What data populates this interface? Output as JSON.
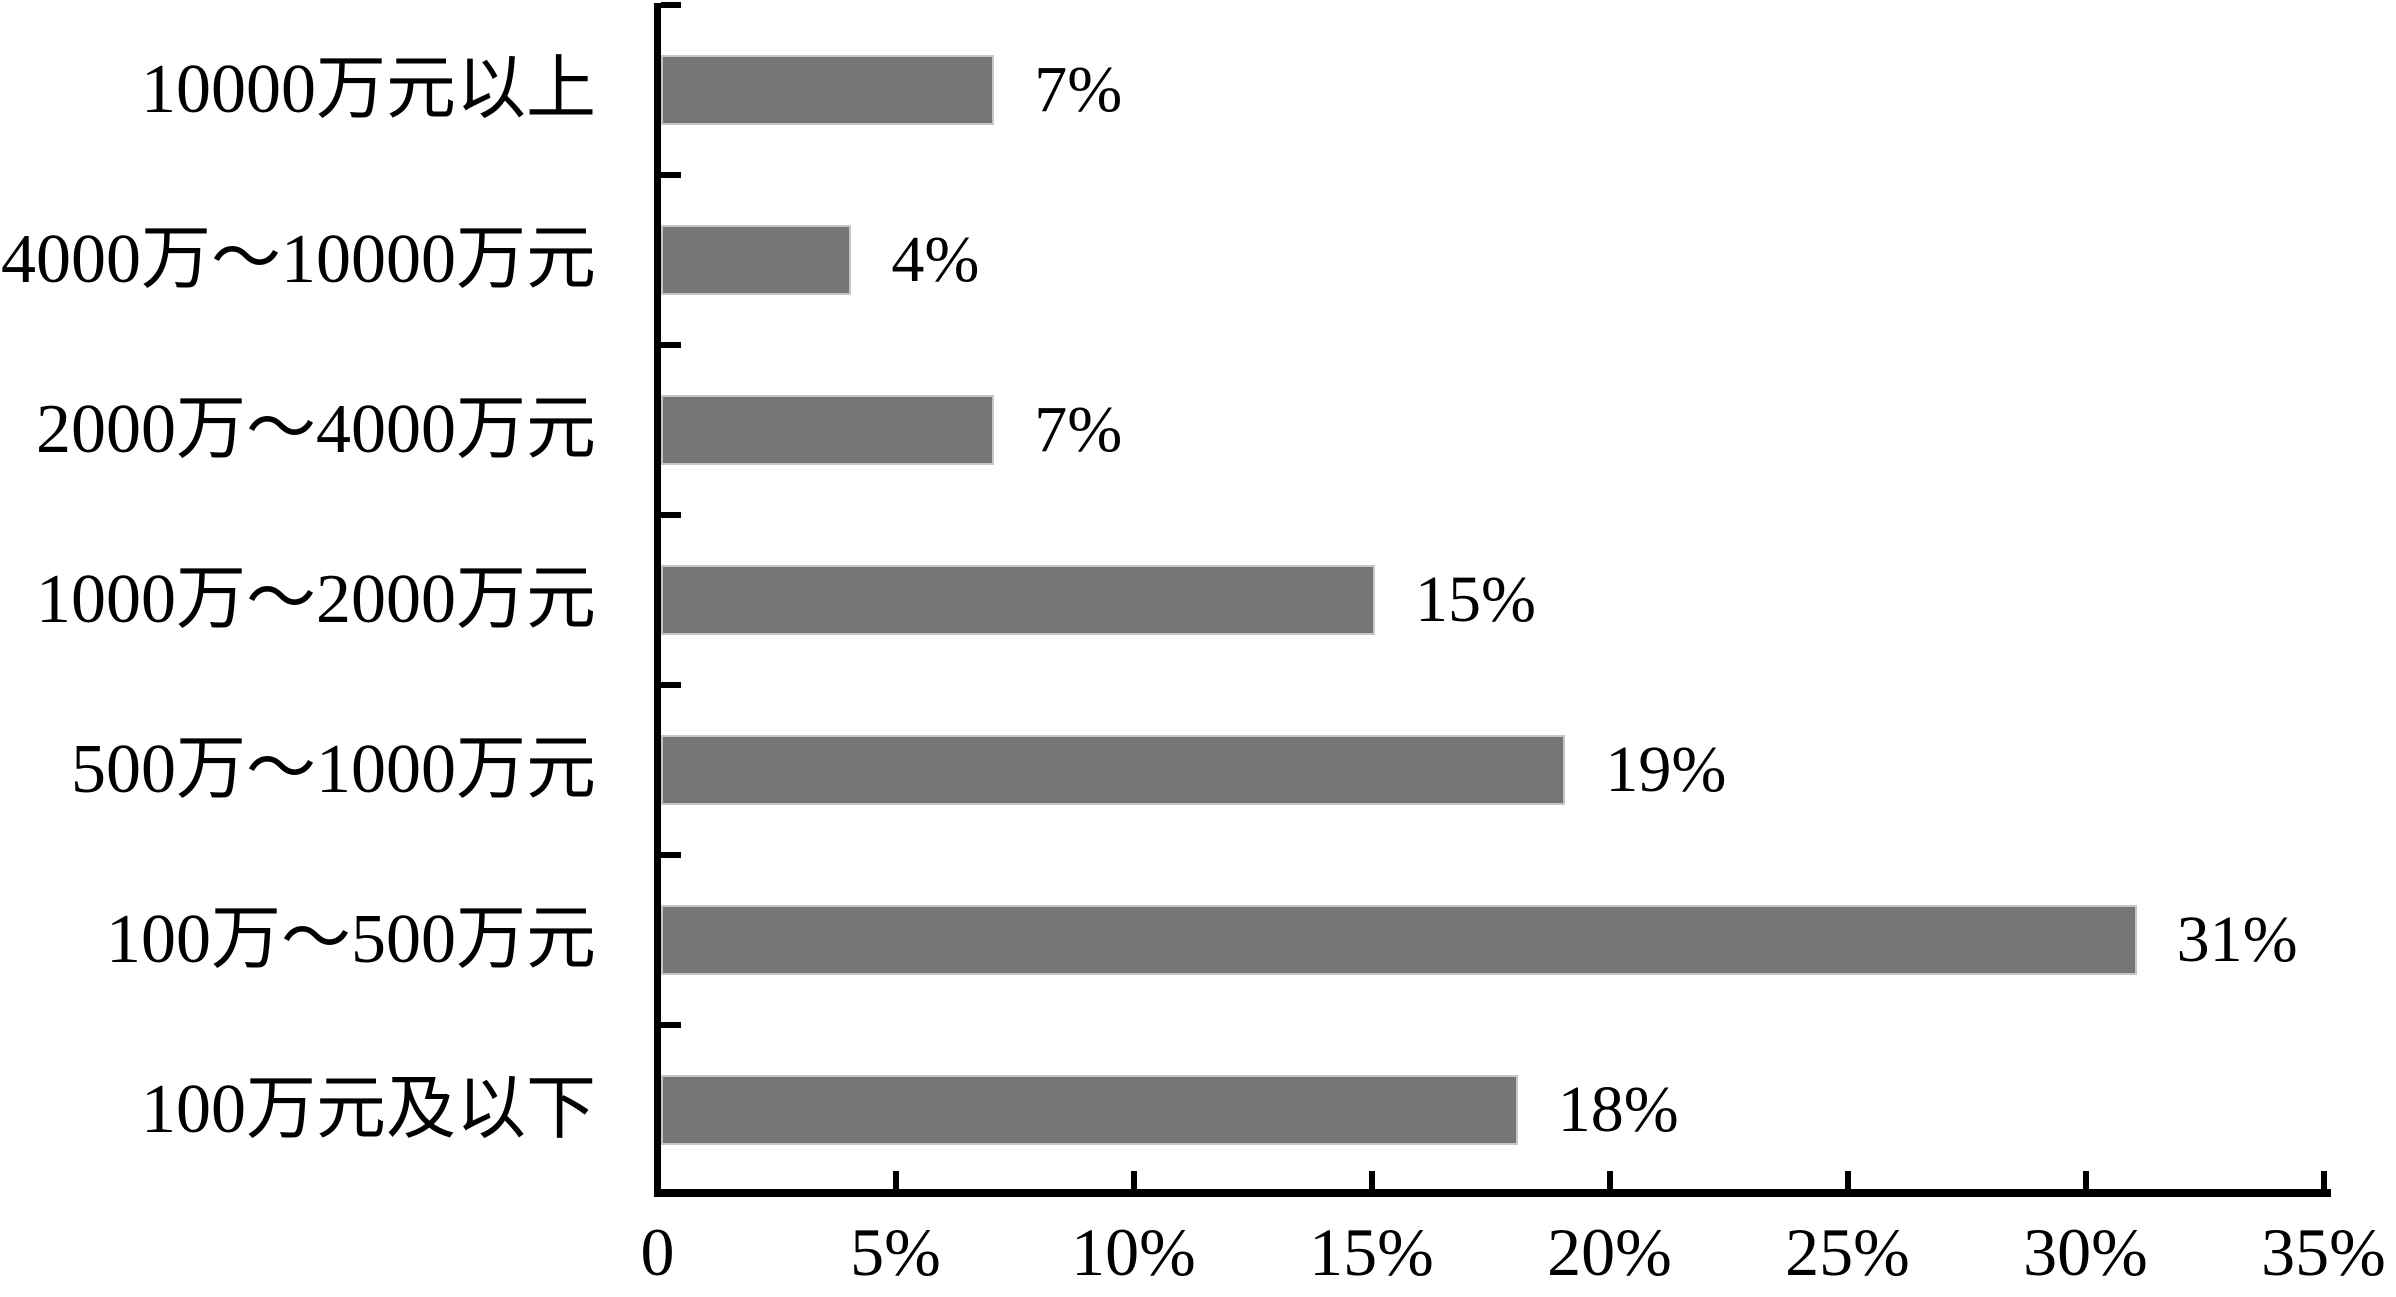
{
  "chart_data": {
    "type": "bar",
    "orientation": "horizontal",
    "title": "",
    "xlabel": "",
    "ylabel": "",
    "categories": [
      "10000万元以上",
      "4000万～10000万元",
      "2000万～4000万元",
      "1000万～2000万元",
      "500万～1000万元",
      "100万～500万元",
      "100万元及以下"
    ],
    "values": [
      7,
      4,
      7,
      15,
      19,
      31,
      18
    ],
    "data_labels": [
      "7%",
      "4%",
      "7%",
      "15%",
      "19%",
      "31%",
      "18%"
    ],
    "unit": "percent",
    "x_ticks": [
      "0",
      "5%",
      "10%",
      "15%",
      "20%",
      "25%",
      "30%",
      "35%"
    ],
    "xlim": [
      0,
      35
    ],
    "grid": false,
    "legend": null,
    "colors": {
      "bar_fill": "#757575",
      "bar_border": "#c6c6c6",
      "axis": "#000000",
      "text": "#000000",
      "background": "#ffffff"
    }
  }
}
